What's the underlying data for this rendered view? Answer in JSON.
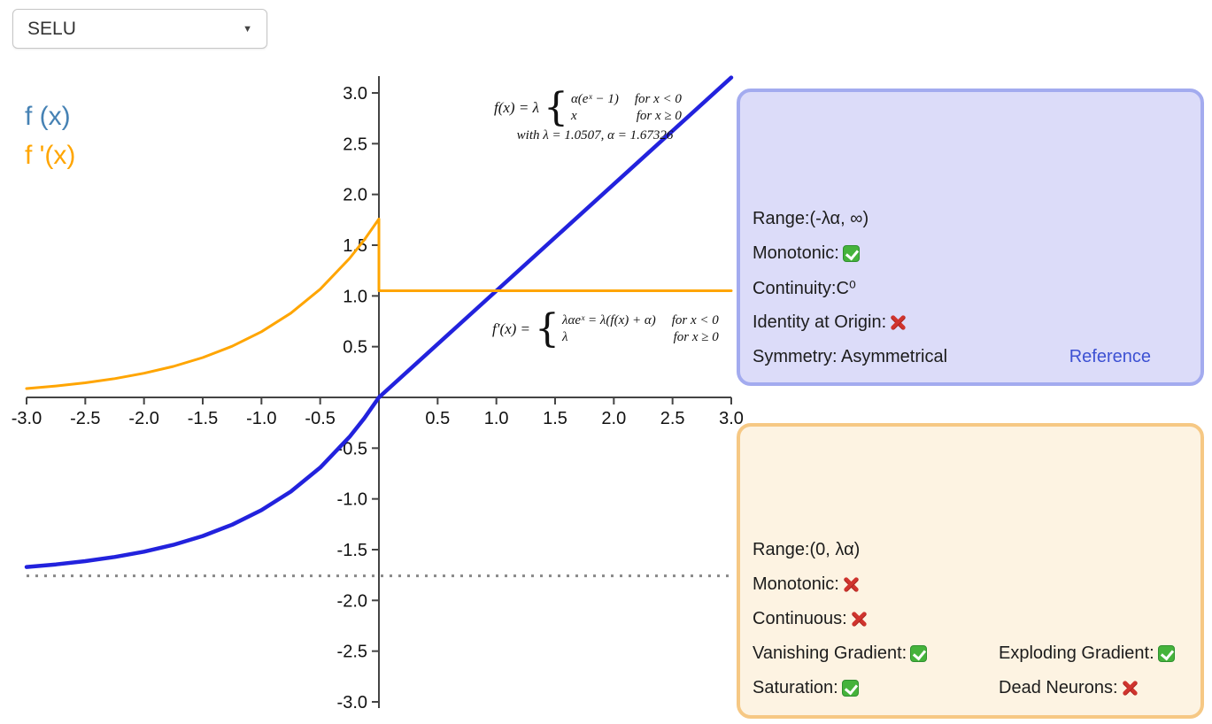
{
  "dropdown": {
    "value": "SELU"
  },
  "legend": {
    "fx_label": "f (x)",
    "dfx_label": "f '(x)"
  },
  "chart_data": {
    "type": "line",
    "title": "",
    "xlabel": "",
    "ylabel": "",
    "xlim": [
      -3,
      3
    ],
    "ylim": [
      -3,
      3
    ],
    "grid": false,
    "legend_position": "top-left",
    "x_tick_labels": [
      "-3.0",
      "-2.5",
      "-2.0",
      "-1.5",
      "-1.0",
      "-0.5",
      "0.5",
      "1.0",
      "1.5",
      "2.0",
      "2.5",
      "3.0"
    ],
    "y_tick_labels": [
      "3.0",
      "2.5",
      "2.0",
      "1.5",
      "1.0",
      "0.5",
      "-0.5",
      "-1.0",
      "-1.5",
      "-2.0",
      "-2.5",
      "-3.0"
    ],
    "series": [
      {
        "id": "fx-curve",
        "name": "f (x)",
        "color": "#2222dd",
        "width": 4.5,
        "points": [
          [
            -3,
            -1.6706
          ],
          [
            -2.75,
            -1.6457
          ],
          [
            -2.5,
            -1.6138
          ],
          [
            -2.25,
            -1.5728
          ],
          [
            -2,
            -1.5202
          ],
          [
            -1.75,
            -1.4526
          ],
          [
            -1.5,
            -1.3658
          ],
          [
            -1.25,
            -1.2544
          ],
          [
            -1,
            -1.1113
          ],
          [
            -0.75,
            -0.9276
          ],
          [
            -0.5,
            -0.6918
          ],
          [
            -0.25,
            -0.3889
          ],
          [
            -0.125,
            -0.2066
          ],
          [
            0,
            0
          ],
          [
            3,
            3.1521
          ]
        ]
      },
      {
        "id": "dfx-curve",
        "name": "f '(x)",
        "color": "#ffa500",
        "width": 3,
        "points": [
          [
            -3,
            0.0875
          ],
          [
            -2.75,
            0.1124
          ],
          [
            -2.5,
            0.1443
          ],
          [
            -2.25,
            0.1853
          ],
          [
            -2,
            0.2379
          ],
          [
            -1.75,
            0.3055
          ],
          [
            -1.5,
            0.3923
          ],
          [
            -1.25,
            0.5037
          ],
          [
            -1,
            0.6468
          ],
          [
            -0.75,
            0.8305
          ],
          [
            -0.5,
            1.0663
          ],
          [
            -0.25,
            1.3692
          ],
          [
            -0.125,
            1.5516
          ],
          [
            0,
            1.7581
          ],
          [
            0,
            1.0507
          ],
          [
            3,
            1.0507
          ]
        ]
      }
    ],
    "asymptote": {
      "y": -1.7581,
      "color": "#888888",
      "dash": "3 7",
      "width": 3
    }
  },
  "formulas": {
    "fx": {
      "lhs": "f(x) = λ",
      "cases": [
        {
          "expr": "α(eˣ − 1)",
          "cond": "for x < 0"
        },
        {
          "expr": "x",
          "cond": "for x ≥ 0"
        }
      ],
      "note": "with λ = 1.0507, α = 1.67326"
    },
    "dfx": {
      "lhs": "f′(x) =",
      "cases": [
        {
          "expr": "λαeˣ = λ(f(x) + α)",
          "cond": "for x < 0"
        },
        {
          "expr": "λ",
          "cond": "for x ≥ 0"
        }
      ]
    }
  },
  "panels": {
    "function_info": {
      "range": "Range:(-λα, ∞)",
      "monotonic_label": "Monotonic:",
      "monotonic_icon": "check",
      "continuity": "Continuity:C⁰",
      "identity_label": "Identity at Origin:",
      "identity_icon": "cross",
      "symmetry": "Symmetry: Asymmetrical",
      "reference_link": "Reference"
    },
    "derivative_info": {
      "range": "Range:(0, λα)",
      "monotonic_label": "Monotonic:",
      "monotonic_icon": "cross",
      "continuous_label": "Continuous:",
      "continuous_icon": "cross",
      "vanishing_label": "Vanishing Gradient:",
      "vanishing_icon": "check",
      "exploding_label": "Exploding Gradient:",
      "exploding_icon": "check",
      "saturation_label": "Saturation:",
      "saturation_icon": "check",
      "dead_label": "Dead Neurons:",
      "dead_icon": "cross"
    }
  },
  "colors": {
    "fx_curve": "#2222dd",
    "dfx_curve": "#ffa500",
    "fx_legend": "#4682b4",
    "function_panel_bg": "#dcdcf9",
    "function_panel_border": "#a3abef",
    "derivative_panel_bg": "#fdf3e2",
    "derivative_panel_border": "#f6c884",
    "reference_link": "#3d51d3",
    "check": "#45b33b",
    "cross": "#d0342e"
  }
}
